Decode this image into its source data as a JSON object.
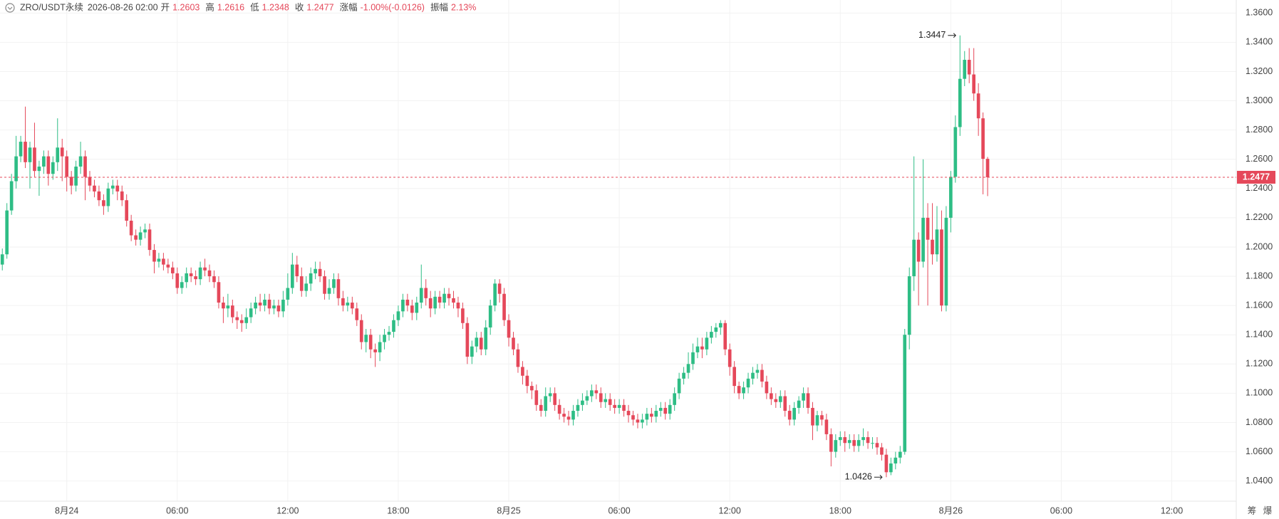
{
  "header": {
    "symbol": "ZRO/USDT永续",
    "time": "2026-08-26 02:00",
    "open_label": "开",
    "high_label": "高",
    "low_label": "低",
    "close_label": "收",
    "change_label": "涨幅",
    "change": "-1.00%(-0.0126)",
    "amplitude_label": "振幅",
    "amplitude": "2.13%"
  },
  "side_labels": [
    "筹",
    "爆"
  ],
  "chart_data": {
    "type": "candlestick",
    "up_color": "#2ebd85",
    "down_color": "#e5485a",
    "grid": true,
    "xlim": [
      -0.5,
      268
    ],
    "ylim": [
      1.0262,
      1.3689
    ],
    "xticks": [
      {
        "value": 14,
        "label": "8月24"
      },
      {
        "value": 38,
        "label": "06:00"
      },
      {
        "value": 62,
        "label": "12:00"
      },
      {
        "value": 86,
        "label": "18:00"
      },
      {
        "value": 110,
        "label": "8月25"
      },
      {
        "value": 134,
        "label": "06:00"
      },
      {
        "value": 158,
        "label": "12:00"
      },
      {
        "value": 182,
        "label": "18:00"
      },
      {
        "value": 206,
        "label": "8月26"
      },
      {
        "value": 230,
        "label": "06:00"
      },
      {
        "value": 254,
        "label": "12:00"
      }
    ],
    "yticks": [
      {
        "value": 1.36,
        "label": "1.3600"
      },
      {
        "value": 1.34,
        "label": "1.3400"
      },
      {
        "value": 1.32,
        "label": "1.3200"
      },
      {
        "value": 1.3,
        "label": "1.3000"
      },
      {
        "value": 1.28,
        "label": "1.2800"
      },
      {
        "value": 1.26,
        "label": "1.2600"
      },
      {
        "value": 1.24,
        "label": "1.2400"
      },
      {
        "value": 1.22,
        "label": "1.2200"
      },
      {
        "value": 1.2,
        "label": "1.2000"
      },
      {
        "value": 1.18,
        "label": "1.1800"
      },
      {
        "value": 1.16,
        "label": "1.1600"
      },
      {
        "value": 1.14,
        "label": "1.1400"
      },
      {
        "value": 1.12,
        "label": "1.1200"
      },
      {
        "value": 1.1,
        "label": "1.1000"
      },
      {
        "value": 1.08,
        "label": "1.0800"
      },
      {
        "value": 1.06,
        "label": "1.0600"
      },
      {
        "value": 1.04,
        "label": "1.0400"
      }
    ],
    "high_index": 208,
    "low_index": 192,
    "candles": [
      [
        1.188,
        1.199,
        1.184,
        1.195
      ],
      [
        1.195,
        1.23,
        1.192,
        1.225
      ],
      [
        1.225,
        1.25,
        1.222,
        1.245
      ],
      [
        1.245,
        1.276,
        1.24,
        1.262
      ],
      [
        1.262,
        1.276,
        1.258,
        1.272
      ],
      [
        1.272,
        1.296,
        1.254,
        1.258
      ],
      [
        1.258,
        1.272,
        1.24,
        1.268
      ],
      [
        1.268,
        1.285,
        1.248,
        1.252
      ],
      [
        1.252,
        1.259,
        1.235,
        1.255
      ],
      [
        1.255,
        1.266,
        1.25,
        1.262
      ],
      [
        1.262,
        1.266,
        1.242,
        1.25
      ],
      [
        1.25,
        1.262,
        1.246,
        1.258
      ],
      [
        1.258,
        1.288,
        1.252,
        1.268
      ],
      [
        1.268,
        1.274,
        1.245,
        1.262
      ],
      [
        1.262,
        1.266,
        1.238,
        1.248
      ],
      [
        1.248,
        1.252,
        1.236,
        1.242
      ],
      [
        1.242,
        1.259,
        1.238,
        1.255
      ],
      [
        1.255,
        1.272,
        1.25,
        1.262
      ],
      [
        1.262,
        1.266,
        1.232,
        1.248
      ],
      [
        1.248,
        1.252,
        1.238,
        1.242
      ],
      [
        1.242,
        1.246,
        1.234,
        1.238
      ],
      [
        1.238,
        1.242,
        1.228,
        1.232
      ],
      [
        1.232,
        1.236,
        1.222,
        1.228
      ],
      [
        1.228,
        1.244,
        1.224,
        1.24
      ],
      [
        1.24,
        1.246,
        1.236,
        1.242
      ],
      [
        1.242,
        1.246,
        1.232,
        1.238
      ],
      [
        1.238,
        1.242,
        1.228,
        1.232
      ],
      [
        1.232,
        1.236,
        1.214,
        1.218
      ],
      [
        1.218,
        1.222,
        1.204,
        1.208
      ],
      [
        1.208,
        1.212,
        1.201,
        1.205
      ],
      [
        1.205,
        1.214,
        1.201,
        1.21
      ],
      [
        1.21,
        1.216,
        1.206,
        1.212
      ],
      [
        1.212,
        1.216,
        1.194,
        1.198
      ],
      [
        1.198,
        1.202,
        1.182,
        1.19
      ],
      [
        1.19,
        1.196,
        1.186,
        1.192
      ],
      [
        1.192,
        1.196,
        1.184,
        1.188
      ],
      [
        1.188,
        1.192,
        1.182,
        1.186
      ],
      [
        1.186,
        1.19,
        1.178,
        1.182
      ],
      [
        1.182,
        1.186,
        1.168,
        1.172
      ],
      [
        1.172,
        1.18,
        1.168,
        1.176
      ],
      [
        1.176,
        1.186,
        1.172,
        1.182
      ],
      [
        1.182,
        1.186,
        1.176,
        1.18
      ],
      [
        1.18,
        1.184,
        1.174,
        1.178
      ],
      [
        1.178,
        1.19,
        1.174,
        1.186
      ],
      [
        1.186,
        1.192,
        1.18,
        1.184
      ],
      [
        1.184,
        1.188,
        1.176,
        1.18
      ],
      [
        1.18,
        1.184,
        1.172,
        1.176
      ],
      [
        1.176,
        1.18,
        1.158,
        1.162
      ],
      [
        1.162,
        1.166,
        1.148,
        1.158
      ],
      [
        1.158,
        1.168,
        1.152,
        1.16
      ],
      [
        1.16,
        1.164,
        1.148,
        1.152
      ],
      [
        1.152,
        1.156,
        1.144,
        1.15
      ],
      [
        1.15,
        1.154,
        1.142,
        1.148
      ],
      [
        1.148,
        1.158,
        1.144,
        1.152
      ],
      [
        1.152,
        1.162,
        1.148,
        1.158
      ],
      [
        1.158,
        1.166,
        1.154,
        1.162
      ],
      [
        1.162,
        1.168,
        1.156,
        1.16
      ],
      [
        1.16,
        1.168,
        1.156,
        1.164
      ],
      [
        1.164,
        1.168,
        1.154,
        1.158
      ],
      [
        1.158,
        1.164,
        1.154,
        1.16
      ],
      [
        1.16,
        1.164,
        1.152,
        1.156
      ],
      [
        1.156,
        1.17,
        1.152,
        1.164
      ],
      [
        1.164,
        1.182,
        1.16,
        1.172
      ],
      [
        1.172,
        1.196,
        1.168,
        1.188
      ],
      [
        1.188,
        1.194,
        1.176,
        1.18
      ],
      [
        1.18,
        1.186,
        1.166,
        1.17
      ],
      [
        1.17,
        1.18,
        1.166,
        1.175
      ],
      [
        1.175,
        1.186,
        1.17,
        1.182
      ],
      [
        1.182,
        1.19,
        1.178,
        1.185
      ],
      [
        1.185,
        1.19,
        1.176,
        1.18
      ],
      [
        1.18,
        1.184,
        1.164,
        1.168
      ],
      [
        1.168,
        1.178,
        1.164,
        1.172
      ],
      [
        1.172,
        1.182,
        1.168,
        1.178
      ],
      [
        1.178,
        1.182,
        1.16,
        1.165
      ],
      [
        1.165,
        1.17,
        1.156,
        1.16
      ],
      [
        1.16,
        1.166,
        1.156,
        1.162
      ],
      [
        1.162,
        1.166,
        1.154,
        1.158
      ],
      [
        1.158,
        1.162,
        1.146,
        1.15
      ],
      [
        1.15,
        1.154,
        1.13,
        1.135
      ],
      [
        1.135,
        1.144,
        1.128,
        1.14
      ],
      [
        1.14,
        1.144,
        1.124,
        1.13
      ],
      [
        1.13,
        1.134,
        1.118,
        1.128
      ],
      [
        1.128,
        1.14,
        1.122,
        1.135
      ],
      [
        1.135,
        1.144,
        1.13,
        1.14
      ],
      [
        1.14,
        1.146,
        1.136,
        1.142
      ],
      [
        1.142,
        1.154,
        1.138,
        1.15
      ],
      [
        1.15,
        1.16,
        1.146,
        1.156
      ],
      [
        1.156,
        1.168,
        1.152,
        1.164
      ],
      [
        1.164,
        1.168,
        1.156,
        1.16
      ],
      [
        1.16,
        1.164,
        1.15,
        1.155
      ],
      [
        1.155,
        1.166,
        1.15,
        1.162
      ],
      [
        1.162,
        1.188,
        1.158,
        1.172
      ],
      [
        1.172,
        1.178,
        1.16,
        1.165
      ],
      [
        1.165,
        1.17,
        1.152,
        1.158
      ],
      [
        1.158,
        1.17,
        1.154,
        1.166
      ],
      [
        1.166,
        1.17,
        1.158,
        1.162
      ],
      [
        1.162,
        1.172,
        1.158,
        1.168
      ],
      [
        1.168,
        1.172,
        1.16,
        1.165
      ],
      [
        1.165,
        1.17,
        1.158,
        1.162
      ],
      [
        1.162,
        1.166,
        1.152,
        1.158
      ],
      [
        1.158,
        1.162,
        1.144,
        1.148
      ],
      [
        1.148,
        1.152,
        1.12,
        1.125
      ],
      [
        1.125,
        1.136,
        1.12,
        1.132
      ],
      [
        1.132,
        1.142,
        1.128,
        1.138
      ],
      [
        1.138,
        1.142,
        1.126,
        1.13
      ],
      [
        1.13,
        1.15,
        1.126,
        1.145
      ],
      [
        1.145,
        1.164,
        1.14,
        1.16
      ],
      [
        1.16,
        1.178,
        1.156,
        1.175
      ],
      [
        1.175,
        1.178,
        1.162,
        1.168
      ],
      [
        1.168,
        1.172,
        1.146,
        1.15
      ],
      [
        1.15,
        1.154,
        1.132,
        1.138
      ],
      [
        1.138,
        1.142,
        1.126,
        1.13
      ],
      [
        1.13,
        1.134,
        1.114,
        1.118
      ],
      [
        1.118,
        1.122,
        1.106,
        1.112
      ],
      [
        1.112,
        1.116,
        1.1,
        1.105
      ],
      [
        1.105,
        1.108,
        1.096,
        1.102
      ],
      [
        1.102,
        1.106,
        1.088,
        1.092
      ],
      [
        1.092,
        1.096,
        1.084,
        1.088
      ],
      [
        1.088,
        1.104,
        1.084,
        1.098
      ],
      [
        1.098,
        1.104,
        1.094,
        1.1
      ],
      [
        1.1,
        1.104,
        1.088,
        1.092
      ],
      [
        1.092,
        1.096,
        1.082,
        1.086
      ],
      [
        1.086,
        1.09,
        1.08,
        1.084
      ],
      [
        1.084,
        1.088,
        1.078,
        1.082
      ],
      [
        1.082,
        1.092,
        1.078,
        1.088
      ],
      [
        1.088,
        1.096,
        1.084,
        1.092
      ],
      [
        1.092,
        1.1,
        1.088,
        1.095
      ],
      [
        1.095,
        1.102,
        1.092,
        1.098
      ],
      [
        1.098,
        1.106,
        1.094,
        1.102
      ],
      [
        1.102,
        1.106,
        1.096,
        1.1
      ],
      [
        1.1,
        1.104,
        1.09,
        1.094
      ],
      [
        1.094,
        1.1,
        1.09,
        1.096
      ],
      [
        1.096,
        1.1,
        1.088,
        1.092
      ],
      [
        1.092,
        1.096,
        1.086,
        1.09
      ],
      [
        1.09,
        1.096,
        1.086,
        1.092
      ],
      [
        1.092,
        1.096,
        1.084,
        1.088
      ],
      [
        1.088,
        1.092,
        1.08,
        1.085
      ],
      [
        1.085,
        1.088,
        1.078,
        1.082
      ],
      [
        1.082,
        1.086,
        1.076,
        1.08
      ],
      [
        1.08,
        1.086,
        1.076,
        1.082
      ],
      [
        1.082,
        1.09,
        1.078,
        1.086
      ],
      [
        1.086,
        1.09,
        1.08,
        1.084
      ],
      [
        1.084,
        1.092,
        1.08,
        1.088
      ],
      [
        1.088,
        1.094,
        1.084,
        1.09
      ],
      [
        1.09,
        1.094,
        1.082,
        1.086
      ],
      [
        1.086,
        1.096,
        1.082,
        1.092
      ],
      [
        1.092,
        1.104,
        1.088,
        1.1
      ],
      [
        1.1,
        1.114,
        1.096,
        1.11
      ],
      [
        1.11,
        1.118,
        1.106,
        1.114
      ],
      [
        1.114,
        1.128,
        1.11,
        1.12
      ],
      [
        1.12,
        1.134,
        1.116,
        1.128
      ],
      [
        1.128,
        1.138,
        1.124,
        1.132
      ],
      [
        1.132,
        1.138,
        1.124,
        1.13
      ],
      [
        1.13,
        1.142,
        1.126,
        1.138
      ],
      [
        1.138,
        1.146,
        1.134,
        1.142
      ],
      [
        1.142,
        1.148,
        1.138,
        1.145
      ],
      [
        1.145,
        1.15,
        1.14,
        1.148
      ],
      [
        1.148,
        1.15,
        1.126,
        1.13
      ],
      [
        1.13,
        1.134,
        1.112,
        1.118
      ],
      [
        1.118,
        1.122,
        1.1,
        1.105
      ],
      [
        1.105,
        1.108,
        1.096,
        1.1
      ],
      [
        1.1,
        1.108,
        1.096,
        1.104
      ],
      [
        1.104,
        1.114,
        1.1,
        1.11
      ],
      [
        1.11,
        1.118,
        1.106,
        1.114
      ],
      [
        1.114,
        1.12,
        1.11,
        1.116
      ],
      [
        1.116,
        1.12,
        1.104,
        1.108
      ],
      [
        1.108,
        1.112,
        1.096,
        1.1
      ],
      [
        1.1,
        1.104,
        1.092,
        1.096
      ],
      [
        1.096,
        1.1,
        1.09,
        1.094
      ],
      [
        1.094,
        1.102,
        1.09,
        1.098
      ],
      [
        1.098,
        1.102,
        1.084,
        1.088
      ],
      [
        1.088,
        1.092,
        1.078,
        1.082
      ],
      [
        1.082,
        1.094,
        1.078,
        1.09
      ],
      [
        1.09,
        1.098,
        1.086,
        1.095
      ],
      [
        1.095,
        1.104,
        1.09,
        1.1
      ],
      [
        1.1,
        1.104,
        1.086,
        1.09
      ],
      [
        1.09,
        1.094,
        1.068,
        1.078
      ],
      [
        1.078,
        1.088,
        1.074,
        1.085
      ],
      [
        1.085,
        1.088,
        1.078,
        1.082
      ],
      [
        1.082,
        1.086,
        1.068,
        1.072
      ],
      [
        1.072,
        1.076,
        1.05,
        1.06
      ],
      [
        1.06,
        1.072,
        1.056,
        1.068
      ],
      [
        1.068,
        1.074,
        1.064,
        1.07
      ],
      [
        1.07,
        1.074,
        1.06,
        1.066
      ],
      [
        1.066,
        1.072,
        1.062,
        1.068
      ],
      [
        1.068,
        1.072,
        1.06,
        1.064
      ],
      [
        1.064,
        1.072,
        1.06,
        1.068
      ],
      [
        1.068,
        1.076,
        1.064,
        1.07
      ],
      [
        1.07,
        1.074,
        1.062,
        1.066
      ],
      [
        1.066,
        1.07,
        1.062,
        1.066
      ],
      [
        1.066,
        1.07,
        1.058,
        1.063
      ],
      [
        1.063,
        1.066,
        1.054,
        1.058
      ],
      [
        1.058,
        1.062,
        1.0426,
        1.046
      ],
      [
        1.046,
        1.056,
        1.044,
        1.052
      ],
      [
        1.052,
        1.06,
        1.048,
        1.056
      ],
      [
        1.056,
        1.064,
        1.052,
        1.06
      ],
      [
        1.06,
        1.144,
        1.058,
        1.14
      ],
      [
        1.14,
        1.186,
        1.13,
        1.18
      ],
      [
        1.18,
        1.262,
        1.17,
        1.205
      ],
      [
        1.205,
        1.21,
        1.16,
        1.19
      ],
      [
        1.19,
        1.26,
        1.186,
        1.22
      ],
      [
        1.22,
        1.23,
        1.16,
        1.205
      ],
      [
        1.205,
        1.23,
        1.188,
        1.195
      ],
      [
        1.195,
        1.228,
        1.19,
        1.212
      ],
      [
        1.212,
        1.225,
        1.156,
        1.16
      ],
      [
        1.16,
        1.228,
        1.156,
        1.22
      ],
      [
        1.22,
        1.252,
        1.21,
        1.248
      ],
      [
        1.248,
        1.29,
        1.244,
        1.282
      ],
      [
        1.282,
        1.3447,
        1.276,
        1.315
      ],
      [
        1.315,
        1.334,
        1.31,
        1.328
      ],
      [
        1.328,
        1.336,
        1.312,
        1.318
      ],
      [
        1.318,
        1.336,
        1.3,
        1.305
      ],
      [
        1.305,
        1.312,
        1.276,
        1.288
      ],
      [
        1.288,
        1.292,
        1.236,
        1.2603
      ],
      [
        1.2603,
        1.2616,
        1.2348,
        1.2477
      ]
    ]
  }
}
